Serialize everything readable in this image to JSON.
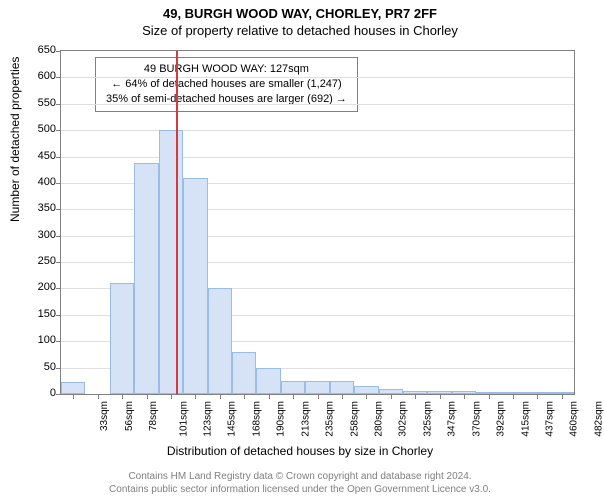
{
  "title_main": "49, BURGH WOOD WAY, CHORLEY, PR7 2FF",
  "title_sub": "Size of property relative to detached houses in Chorley",
  "y_axis_label": "Number of detached properties",
  "x_axis_label": "Distribution of detached houses by size in Chorley",
  "footer_line1": "Contains HM Land Registry data © Crown copyright and database right 2024.",
  "footer_line2": "Contains public sector information licensed under the Open Government Licence v3.0.",
  "info_box": {
    "line1": "49 BURGH WOOD WAY: 127sqm",
    "line2": "← 64% of detached houses are smaller (1,247)",
    "line3": "35% of semi-detached houses are larger (692) →"
  },
  "marker_value": 127,
  "chart": {
    "type": "histogram",
    "ylim": [
      0,
      650
    ],
    "ytick_step": 50,
    "x_bin_start": 22,
    "x_bin_width": 22.4,
    "x_bin_count": 21,
    "x_tick_labels": [
      "33sqm",
      "56sqm",
      "78sqm",
      "101sqm",
      "123sqm",
      "145sqm",
      "168sqm",
      "190sqm",
      "213sqm",
      "235sqm",
      "258sqm",
      "280sqm",
      "302sqm",
      "325sqm",
      "347sqm",
      "370sqm",
      "392sqm",
      "415sqm",
      "437sqm",
      "460sqm",
      "482sqm"
    ],
    "values": [
      22,
      0,
      210,
      438,
      500,
      410,
      200,
      80,
      50,
      25,
      25,
      25,
      15,
      10,
      5,
      5,
      5,
      3,
      3,
      2,
      2
    ],
    "bar_fill": "#d6e2f5",
    "bar_border": "#9abce8",
    "grid_color": "#e0e0e0",
    "marker_color": "#d43b3b",
    "axis_color": "#808080",
    "title_fontsize": 13,
    "label_fontsize": 12,
    "tick_fontsize": 11,
    "xtick_fontsize": 10
  }
}
